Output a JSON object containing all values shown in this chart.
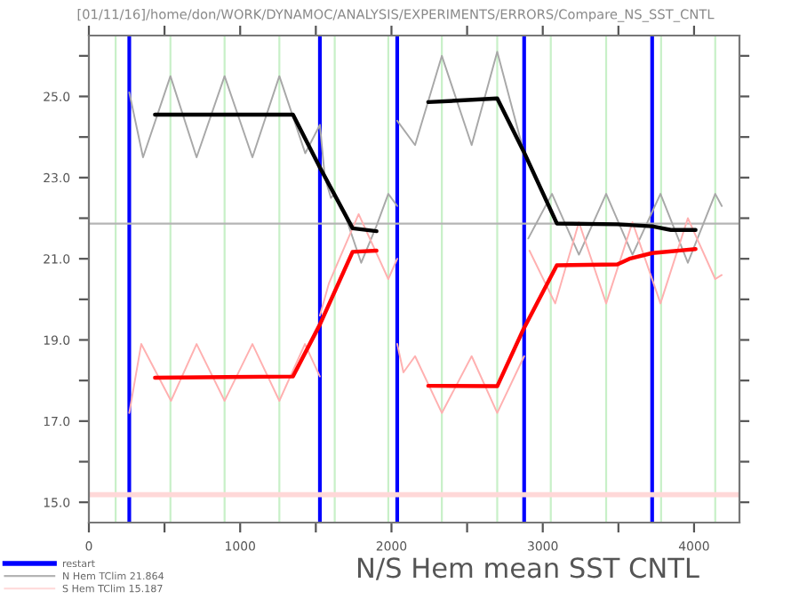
{
  "chart_data": {
    "type": "line",
    "title": "[01/11/16]/home/don/WORK/DYNAMOC/ANALYSIS/EXPERIMENTS/ERRORS/Compare_NS_SST_CNTL",
    "xlabel": "N/S Hem mean SST CNTL",
    "series": [
      {
        "color": "#a8a8a8",
        "x": [
          267,
          358,
          539,
          712,
          897,
          1081,
          1259,
          1430,
          1527,
          null,
          1527,
          1560,
          1600,
          1625,
          1700,
          1800,
          1900,
          1979,
          2038,
          null,
          2038,
          2156,
          2333,
          2530,
          2699,
          2877,
          null,
          2904,
          3061,
          3239,
          3419,
          3593,
          3778,
          3959,
          4140,
          4183
        ],
        "values": [
          25.1,
          23.5,
          25.5,
          23.5,
          25.5,
          23.5,
          25.5,
          23.6,
          24.3,
          null,
          24.3,
          23.0,
          22.5,
          22.6,
          22.0,
          20.9,
          21.8,
          22.6,
          22.3,
          null,
          24.4,
          23.8,
          26.0,
          23.8,
          26.1,
          23.6,
          null,
          21.5,
          22.6,
          21.1,
          22.6,
          21.1,
          22.6,
          20.9,
          22.6,
          22.3
        ]
      },
      {
        "color": "#ffb0b0",
        "x": [
          267,
          346,
          543,
          712,
          897,
          1081,
          1259,
          1428,
          1527,
          null,
          1527,
          1587,
          1783,
          1979,
          2038,
          null,
          2038,
          2079,
          2156,
          2333,
          2530,
          2699,
          2877,
          null,
          2912,
          3082,
          3239,
          3419,
          3593,
          3778,
          3959,
          4140,
          4183
        ],
        "values": [
          17.2,
          18.9,
          17.5,
          18.9,
          17.5,
          18.9,
          17.5,
          18.9,
          18.1,
          null,
          19.6,
          20.4,
          22.1,
          20.5,
          21.0,
          null,
          18.9,
          18.2,
          18.6,
          17.2,
          18.6,
          17.2,
          18.6,
          null,
          21.2,
          19.9,
          21.9,
          19.9,
          21.9,
          19.9,
          22.0,
          20.5,
          20.6
        ]
      },
      {
        "color": "#000000",
        "x": [
          437,
          1349,
          1527,
          1743,
          1901,
          null,
          2243,
          2699,
          2873,
          3093,
          3493,
          3723,
          3847,
          4010
        ],
        "values": [
          24.55,
          24.55,
          23.25,
          21.75,
          21.68,
          null,
          24.86,
          24.95,
          23.65,
          21.87,
          21.85,
          21.8,
          21.71,
          21.71
        ]
      },
      {
        "color": "#ff0000",
        "x": [
          437,
          1349,
          1527,
          1743,
          1901,
          null,
          2243,
          2699,
          2873,
          3093,
          3493,
          3573,
          3723,
          4010
        ],
        "values": [
          18.07,
          18.1,
          19.38,
          21.17,
          21.2,
          null,
          17.87,
          17.86,
          19.27,
          20.84,
          20.86,
          21.0,
          21.14,
          21.24
        ]
      }
    ],
    "ref_lines": [
      {
        "axis": "x",
        "value": 177,
        "color": "#c8f0c8"
      },
      {
        "axis": "x",
        "value": 539,
        "color": "#c8f0c8"
      },
      {
        "axis": "x",
        "value": 897,
        "color": "#c8f0c8"
      },
      {
        "axis": "x",
        "value": 1259,
        "color": "#c8f0c8"
      },
      {
        "axis": "x",
        "value": 1625,
        "color": "#c8f0c8"
      },
      {
        "axis": "x",
        "value": 1979,
        "color": "#c8f0c8"
      },
      {
        "axis": "x",
        "value": 2333,
        "color": "#c8f0c8"
      },
      {
        "axis": "x",
        "value": 2699,
        "color": "#c8f0c8"
      },
      {
        "axis": "x",
        "value": 3053,
        "color": "#c8f0c8"
      },
      {
        "axis": "x",
        "value": 3419,
        "color": "#c8f0c8"
      },
      {
        "axis": "x",
        "value": 3782,
        "color": "#c8f0c8"
      },
      {
        "axis": "x",
        "value": 4140,
        "color": "#c8f0c8"
      },
      {
        "axis": "x",
        "value": 267,
        "color": "#0000ff",
        "label": "restart"
      },
      {
        "axis": "x",
        "value": 1527,
        "color": "#0000ff"
      },
      {
        "axis": "x",
        "value": 2038,
        "color": "#0000ff"
      },
      {
        "axis": "x",
        "value": 2877,
        "color": "#0000ff"
      },
      {
        "axis": "x",
        "value": 3723,
        "color": "#0000ff"
      },
      {
        "axis": "y",
        "value": 21.864,
        "color": "#b4b4b4",
        "label": "N Hem TClim 21.864"
      },
      {
        "axis": "y",
        "value": 15.187,
        "color": "#ffd8d8",
        "label": "S Hem TClim 15.187"
      }
    ],
    "xlim": [
      0,
      4300
    ],
    "ylim": [
      14.5,
      26.5
    ],
    "xticks": [
      0,
      {
        "value": 500,
        "label": null
      },
      1000,
      {
        "value": 1500,
        "label": null
      },
      2000,
      {
        "value": 2500,
        "label": null
      },
      3000,
      {
        "value": 3500,
        "label": null
      },
      4000
    ],
    "yticks": [
      {
        "value": 15,
        "label": "15.0"
      },
      {
        "value": 16,
        "label": null
      },
      {
        "value": 17,
        "label": "17.0"
      },
      {
        "value": 18,
        "label": null
      },
      {
        "value": 19,
        "label": "19.0"
      },
      {
        "value": 20,
        "label": null
      },
      {
        "value": 21,
        "label": "21.0"
      },
      {
        "value": 22,
        "label": null
      },
      {
        "value": 23,
        "label": "23.0"
      },
      {
        "value": 24,
        "label": null
      },
      {
        "value": 25,
        "label": "25.0"
      },
      {
        "value": 26,
        "label": null
      }
    ],
    "grid": false,
    "legend": "bottom left"
  }
}
